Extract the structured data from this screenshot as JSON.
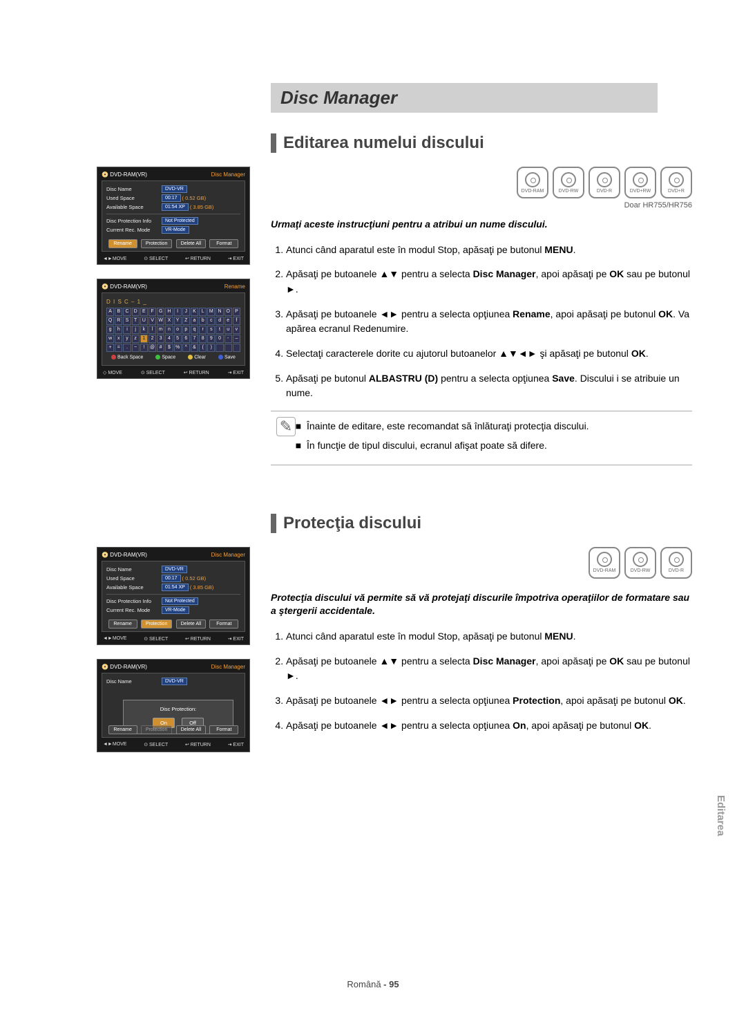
{
  "page_title": "Disc Manager",
  "section1": {
    "title": "Editarea numelui discului",
    "note_right": "Doar HR755/HR756",
    "intro": "Urmaţi aceste instrucţiuni pentru a atribui un nume discului.",
    "steps": [
      "Atunci când aparatul este în modul Stop, apăsaţi pe butonul MENU.",
      "Apăsaţi pe butoanele ▲▼ pentru a selecta Disc Manager, apoi apăsaţi pe OK sau pe butonul ►.",
      "Apăsaţi pe butoanele ◄► pentru a selecta opţiunea Rename, apoi apăsaţi pe butonul OK. Va apărea ecranul Redenumire.",
      "Selectaţi caracterele dorite cu ajutorul butoanelor ▲▼◄► şi apăsaţi pe butonul OK.",
      "Apăsaţi pe butonul ALBASTRU (D) pentru a selecta opţiunea Save. Discului i se atribuie un nume."
    ],
    "note_box": [
      "Înainte de editare, este recomandat să înlăturaţi protecţia discului.",
      "În funcţie de tipul discului, ecranul afişat poate să difere."
    ],
    "disc_types": [
      "DVD-RAM",
      "DVD-RW",
      "DVD-R",
      "DVD+RW",
      "DVD+R"
    ]
  },
  "section2": {
    "title": "Protecţia discului",
    "intro": "Protecţia discului vă permite să vă protejaţi discurile împotriva operaţiilor de formatare sau a ştergerii accidentale.",
    "steps": [
      "Atunci când aparatul este în modul Stop, apăsaţi pe butonul MENU.",
      "Apăsaţi pe butoanele ▲▼ pentru a selecta Disc Manager, apoi apăsaţi pe OK sau pe butonul ►.",
      "Apăsaţi pe butoanele ◄► pentru a selecta opţiunea Protection, apoi apăsaţi pe butonul OK.",
      "Apăsaţi pe butoanele ◄► pentru a selecta opţiunea On, apoi apăsaţi pe butonul OK."
    ],
    "disc_types": [
      "DVD-RAM",
      "DVD-RW",
      "DVD-R"
    ]
  },
  "screen1": {
    "title_left": "DVD-RAM(VR)",
    "title_right": "Disc Manager",
    "rows": {
      "disc_name_label": "Disc Name",
      "disc_name_val": "DVD-VR",
      "used_label": "Used Space",
      "used_time": "00:17",
      "used_size": "( 0.52 GB)",
      "avail_label": "Available Space",
      "avail_time": "01:54 XP",
      "avail_size": "( 3.85 GB)",
      "prot_label": "Disc Protection Info",
      "prot_val": "Not Protected",
      "mode_label": "Current Rec. Mode",
      "mode_val": "VR-Mode"
    },
    "buttons": [
      "Rename",
      "Protection",
      "Delete All",
      "Format"
    ],
    "active_btn": 0,
    "hints": {
      "move": "◄►MOVE",
      "select": "⊙ SELECT",
      "return": "↩ RETURN",
      "exit": "⇥ EXIT"
    }
  },
  "screen2": {
    "title_left": "DVD-RAM(VR)",
    "title_right": "Rename",
    "input_label": "D I S C – 1 _",
    "grid_rows": [
      [
        "A",
        "B",
        "C",
        "D",
        "E",
        "F",
        "G",
        "H",
        "I",
        "J",
        "K",
        "L",
        "M",
        "N",
        "O",
        "P"
      ],
      [
        "Q",
        "R",
        "S",
        "T",
        "U",
        "V",
        "W",
        "X",
        "Y",
        "Z",
        "a",
        "b",
        "c",
        "d",
        "e",
        "f"
      ],
      [
        "g",
        "h",
        "i",
        "j",
        "k",
        "l",
        "m",
        "n",
        "o",
        "p",
        "q",
        "r",
        "s",
        "t",
        "u",
        "v"
      ],
      [
        "w",
        "x",
        "y",
        "z",
        "1",
        "2",
        "3",
        "4",
        "5",
        "6",
        "7",
        "8",
        "9",
        "0",
        "-",
        "–"
      ],
      [
        "+",
        "=",
        ".",
        "~",
        "!",
        "@",
        "#",
        "$",
        "%",
        "^",
        "&",
        "(",
        ")",
        "",
        "",
        ""
      ]
    ],
    "selected_cell": [
      3,
      4
    ],
    "keys": {
      "back": "Back Space",
      "space": "Space",
      "clear": "Clear",
      "save": "Save"
    },
    "hints": {
      "move": "◇ MOVE",
      "select": "⊙ SELECT",
      "return": "↩ RETURN",
      "exit": "⇥ EXIT"
    }
  },
  "screen3": {
    "title_left": "DVD-RAM(VR)",
    "title_right": "Disc Manager",
    "buttons": [
      "Rename",
      "Protection",
      "Delete All",
      "Format"
    ],
    "active_btn": 1,
    "hints": {
      "move": "◄►MOVE",
      "select": "⊙ SELECT",
      "return": "↩ RETURN",
      "exit": "⇥ EXIT"
    }
  },
  "screen4": {
    "title_left": "DVD-RAM(VR)",
    "title_right": "Disc Manager",
    "disc_name_label": "Disc Name",
    "disc_name_val": "DVD-VR",
    "popup": {
      "title": "Disc Protection:",
      "on": "On",
      "off": "Off"
    },
    "buttons": [
      "Rename",
      "Protection",
      "Delete All",
      "Format"
    ],
    "hints": {
      "move": "◄►MOVE",
      "select": "⊙ SELECT",
      "return": "↩ RETURN",
      "exit": "⇥ EXIT"
    }
  },
  "side_tab": "Editarea",
  "footer": {
    "lang": "Română",
    "page": "- 95"
  },
  "colors": {
    "screen_bg": "#1a1a1a",
    "panel_bg": "#2f2f2f",
    "valbox": "#204080",
    "active": "#d09030",
    "banner": "#d0d0d0"
  }
}
